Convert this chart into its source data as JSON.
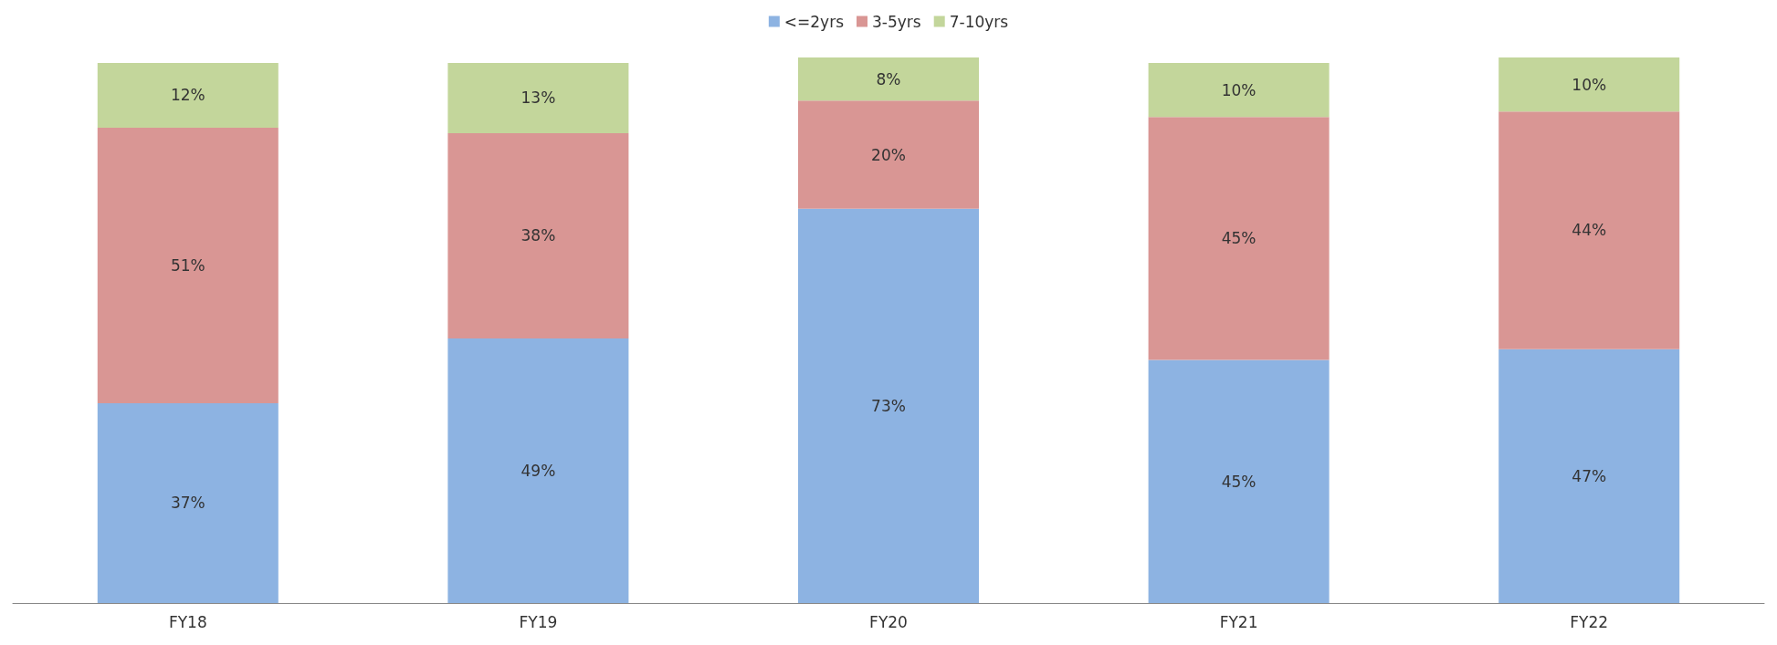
{
  "chart_data": {
    "type": "bar",
    "stacked": true,
    "categories": [
      "FY18",
      "FY19",
      "FY20",
      "FY21",
      "FY22"
    ],
    "series": [
      {
        "name": "<=2yrs",
        "color": "#8db3e2",
        "values": [
          37,
          49,
          73,
          45,
          47
        ],
        "value_labels": [
          "37%",
          "49%",
          "73%",
          "45%",
          "47%"
        ]
      },
      {
        "name": "3-5yrs",
        "color": "#d99694",
        "values": [
          51,
          38,
          20,
          45,
          44
        ],
        "value_labels": [
          "51%",
          "38%",
          "20%",
          "45%",
          "44%"
        ]
      },
      {
        "name": "7-10yrs",
        "color": "#c3d69b",
        "values": [
          12,
          13,
          8,
          10,
          10
        ],
        "value_labels": [
          "12%",
          "13%",
          "8%",
          "10%",
          "10%"
        ]
      }
    ],
    "legend": "top"
  }
}
